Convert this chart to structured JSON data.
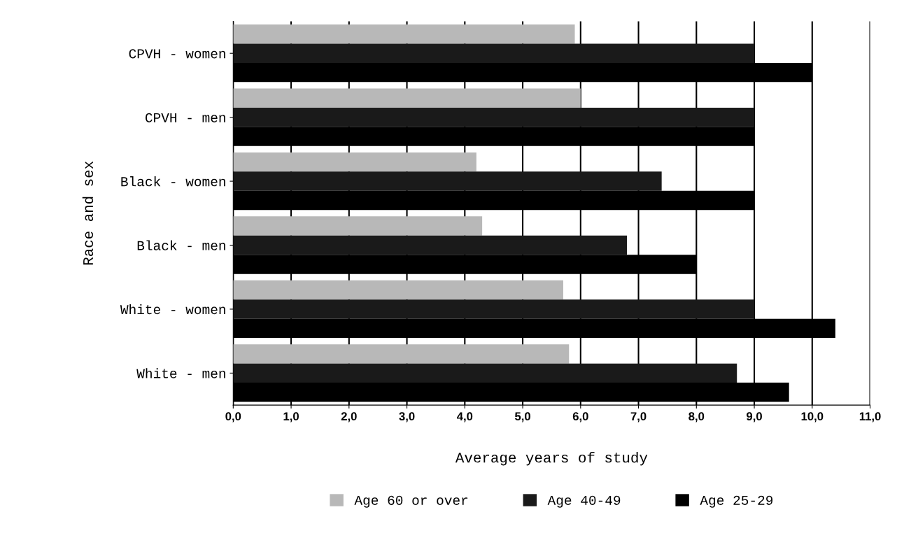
{
  "chart_data": {
    "type": "bar",
    "orientation": "horizontal",
    "xlabel": "Average years of study",
    "ylabel": "Race and sex",
    "categories": [
      "CPVH - women",
      "CPVH - men",
      "Black - women",
      "Black - men",
      "White - women",
      "White - men"
    ],
    "series": [
      {
        "name": "Age 60 or over",
        "color": "#b8b8b8",
        "values": [
          5.9,
          6.0,
          4.2,
          4.3,
          5.7,
          5.8
        ]
      },
      {
        "name": "Age 40-49",
        "color": "#1a1a1a",
        "values": [
          9.0,
          9.0,
          7.4,
          6.8,
          9.0,
          8.7
        ]
      },
      {
        "name": "Age 25-29",
        "color": "#000000",
        "values": [
          10.0,
          9.0,
          9.0,
          8.0,
          10.4,
          9.6
        ]
      }
    ],
    "xlim": [
      0,
      11
    ],
    "xticks": [
      {
        "value": 0,
        "label": "0,0"
      },
      {
        "value": 1,
        "label": "1,0"
      },
      {
        "value": 2,
        "label": "2,0"
      },
      {
        "value": 3,
        "label": "3,0"
      },
      {
        "value": 4,
        "label": "4,0"
      },
      {
        "value": 5,
        "label": "5,0"
      },
      {
        "value": 6,
        "label": "6,0"
      },
      {
        "value": 7,
        "label": "7,0"
      },
      {
        "value": 8,
        "label": "8,0"
      },
      {
        "value": 9,
        "label": "9,0"
      },
      {
        "value": 10,
        "label": "10,0"
      },
      {
        "value": 11,
        "label": "11,0"
      }
    ],
    "grid": "x",
    "legend": "bottom"
  }
}
